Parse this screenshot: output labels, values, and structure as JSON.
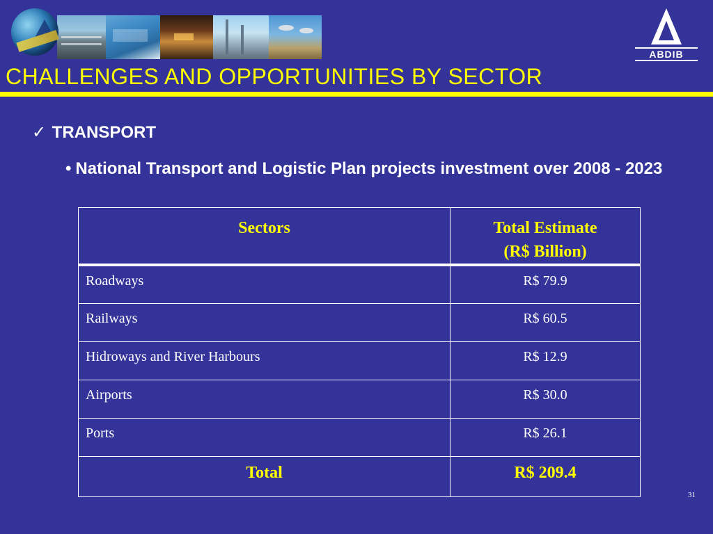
{
  "header": {
    "title": "CHALLENGES AND OPPORTUNITIES BY SECTOR",
    "logo_text": "ABDIB",
    "banner_images": [
      "globe-emblem",
      "water-treatment-photo",
      "dam-spillway-photo",
      "industrial-plant-photo",
      "refinery-photo",
      "water-towers-photo"
    ]
  },
  "section": {
    "check_icon": "✓",
    "heading": "TRANSPORT",
    "bullet_icon": "•",
    "bullet_text": "National Transport and Logistic Plan projects investment over 2008 - 2023"
  },
  "table": {
    "headers": {
      "sectors": "Sectors",
      "estimate_line1": "Total Estimate",
      "estimate_line2": "(R$ Billion)"
    },
    "rows": [
      {
        "sector": "Roadways",
        "value": "R$ 79.9"
      },
      {
        "sector": "Railways",
        "value": "R$ 60.5"
      },
      {
        "sector": "Hidroways and River Harbours",
        "value": "R$ 12.9"
      },
      {
        "sector": "Airports",
        "value": "R$ 30.0"
      },
      {
        "sector": "Ports",
        "value": "R$ 26.1"
      }
    ],
    "total": {
      "label": "Total",
      "value": "R$ 209.4"
    }
  },
  "footer": {
    "page_number": "31"
  },
  "colors": {
    "background": "#333399",
    "accent": "#ffff00",
    "text": "#ffffff"
  }
}
